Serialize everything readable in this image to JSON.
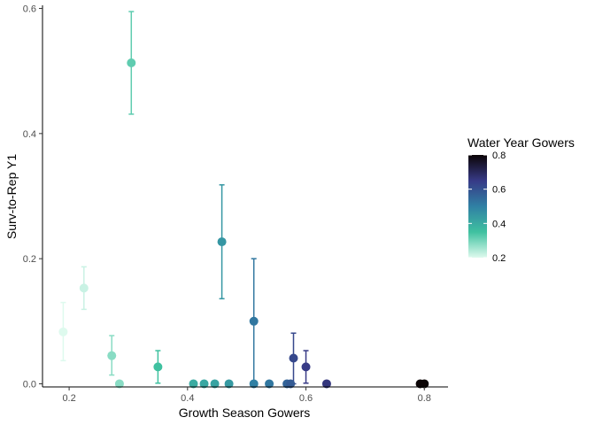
{
  "chart_data": {
    "type": "scatter",
    "title": "",
    "xlabel": "Growth Season Gowers",
    "ylabel": "Surv-to-Rep Y1",
    "xlim": [
      0.155,
      0.84
    ],
    "ylim": [
      -0.005,
      0.605
    ],
    "x_ticks": [
      0.2,
      0.4,
      0.6,
      0.8
    ],
    "x_tick_labels": [
      "0.2",
      "0.4",
      "0.6",
      "0.8"
    ],
    "y_ticks": [
      0.0,
      0.2,
      0.4,
      0.6
    ],
    "y_tick_labels": [
      "0.0",
      "0.2",
      "0.4",
      "0.6"
    ],
    "grid": false,
    "legend": {
      "title": "Water Year Gowers",
      "placement": "right",
      "range": [
        0.2,
        0.8
      ],
      "ticks": [
        0.2,
        0.4,
        0.6,
        0.8
      ],
      "tick_labels": [
        "0.2",
        "0.4",
        "0.6",
        "0.8"
      ],
      "color_stops": [
        "#defaee",
        "#3fc1a0",
        "#3080a4",
        "#373a86",
        "#0b0405"
      ]
    },
    "points": [
      {
        "x": 0.19,
        "y": 0.083,
        "ymin": 0.037,
        "ymax": 0.13,
        "color_value": 0.2
      },
      {
        "x": 0.225,
        "y": 0.153,
        "ymin": 0.119,
        "ymax": 0.187,
        "color_value": 0.22
      },
      {
        "x": 0.272,
        "y": 0.045,
        "ymin": 0.014,
        "ymax": 0.077,
        "color_value": 0.28
      },
      {
        "x": 0.285,
        "y": 0.0,
        "ymin": 0.0,
        "ymax": 0.0,
        "color_value": 0.28
      },
      {
        "x": 0.305,
        "y": 0.513,
        "ymin": 0.431,
        "ymax": 0.595,
        "color_value": 0.32
      },
      {
        "x": 0.35,
        "y": 0.027,
        "ymin": 0.001,
        "ymax": 0.053,
        "color_value": 0.35
      },
      {
        "x": 0.41,
        "y": 0.0,
        "ymin": 0.0,
        "ymax": 0.0,
        "color_value": 0.4
      },
      {
        "x": 0.428,
        "y": 0.0,
        "ymin": 0.0,
        "ymax": 0.0,
        "color_value": 0.41
      },
      {
        "x": 0.446,
        "y": 0.0,
        "ymin": 0.0,
        "ymax": 0.0,
        "color_value": 0.42
      },
      {
        "x": 0.458,
        "y": 0.227,
        "ymin": 0.136,
        "ymax": 0.318,
        "color_value": 0.45
      },
      {
        "x": 0.47,
        "y": 0.0,
        "ymin": 0.0,
        "ymax": 0.0,
        "color_value": 0.44
      },
      {
        "x": 0.512,
        "y": 0.1,
        "ymin": 0.0,
        "ymax": 0.2,
        "color_value": 0.52
      },
      {
        "x": 0.512,
        "y": 0.0,
        "ymin": 0.0,
        "ymax": 0.0,
        "color_value": 0.5
      },
      {
        "x": 0.538,
        "y": 0.0,
        "ymin": 0.0,
        "ymax": 0.0,
        "color_value": 0.52
      },
      {
        "x": 0.568,
        "y": 0.0,
        "ymin": 0.0,
        "ymax": 0.0,
        "color_value": 0.56
      },
      {
        "x": 0.574,
        "y": 0.0,
        "ymin": 0.0,
        "ymax": 0.0,
        "color_value": 0.58
      },
      {
        "x": 0.579,
        "y": 0.041,
        "ymin": 0.0,
        "ymax": 0.081,
        "color_value": 0.62
      },
      {
        "x": 0.6,
        "y": 0.027,
        "ymin": 0.001,
        "ymax": 0.053,
        "color_value": 0.65
      },
      {
        "x": 0.635,
        "y": 0.0,
        "ymin": 0.0,
        "ymax": 0.0,
        "color_value": 0.66
      },
      {
        "x": 0.793,
        "y": 0.0,
        "ymin": 0.0,
        "ymax": 0.0,
        "color_value": 0.8
      },
      {
        "x": 0.8,
        "y": 0.0,
        "ymin": 0.0,
        "ymax": 0.0,
        "color_value": 0.81
      }
    ]
  }
}
